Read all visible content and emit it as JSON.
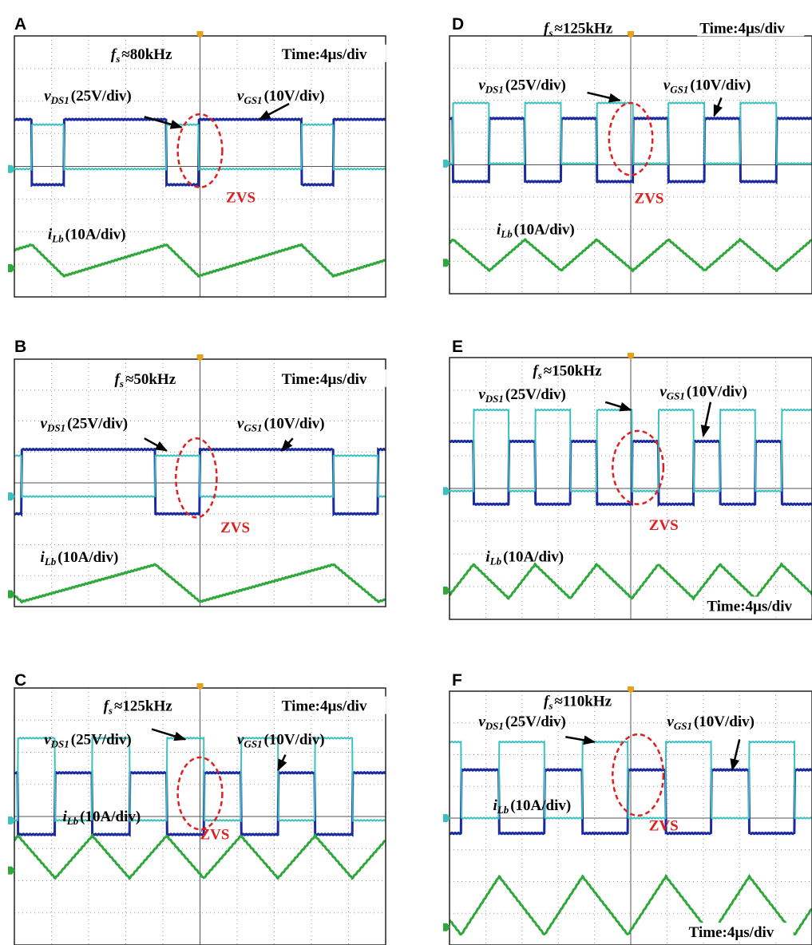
{
  "panels": [
    {
      "label": "A",
      "frequency": {
        "symbol": "f",
        "subscript": "s",
        "text": "≈80kHz"
      },
      "time": "Time:4µs/div",
      "vds": {
        "symbol": "v",
        "subscript": "DS1",
        "text": "(25V/div)"
      },
      "vgs": {
        "symbol": "v",
        "subscript": "GS1",
        "text": "(10V/div)"
      },
      "ilb": {
        "symbol": "i",
        "subscript": "Lb",
        "text": "(10A/div)"
      },
      "zvs": "ZVS"
    },
    {
      "label": "B",
      "frequency": {
        "symbol": "f",
        "subscript": "s",
        "text": "≈50kHz"
      },
      "time": "Time:4µs/div",
      "vds": {
        "symbol": "v",
        "subscript": "DS1",
        "text": "(25V/div)"
      },
      "vgs": {
        "symbol": "v",
        "subscript": "GS1",
        "text": "(10V/div)"
      },
      "ilb": {
        "symbol": "i",
        "subscript": "Lb",
        "text": "(10A/div)"
      },
      "zvs": "ZVS"
    },
    {
      "label": "C",
      "frequency": {
        "symbol": "f",
        "subscript": "s",
        "text": "≈125kHz"
      },
      "time": "Time:4µs/div",
      "vds": {
        "symbol": "v",
        "subscript": "DS1",
        "text": "(25V/div)"
      },
      "vgs": {
        "symbol": "v",
        "subscript": "GS1",
        "text": "(10V/div)"
      },
      "ilb": {
        "symbol": "i",
        "subscript": "Lb",
        "text": "(10A/div)"
      },
      "zvs": "ZVS"
    },
    {
      "label": "D",
      "frequency": {
        "symbol": "f",
        "subscript": "s",
        "text": "≈125kHz"
      },
      "time": "Time:4µs/div",
      "vds": {
        "symbol": "v",
        "subscript": "DS1",
        "text": "(25V/div)"
      },
      "vgs": {
        "symbol": "v",
        "subscript": "GS1",
        "text": "(10V/div)"
      },
      "ilb": {
        "symbol": "i",
        "subscript": "Lb",
        "text": "(10A/div)"
      },
      "zvs": "ZVS"
    },
    {
      "label": "E",
      "frequency": {
        "symbol": "f",
        "subscript": "s",
        "text": "≈150kHz"
      },
      "time": "Time:4µs/div",
      "vds": {
        "symbol": "v",
        "subscript": "DS1",
        "text": "(25V/div)"
      },
      "vgs": {
        "symbol": "v",
        "subscript": "GS1",
        "text": "(10V/div)"
      },
      "ilb": {
        "symbol": "i",
        "subscript": "Lb",
        "text": "(10A/div)"
      },
      "zvs": "ZVS"
    },
    {
      "label": "F",
      "frequency": {
        "symbol": "f",
        "subscript": "s",
        "text": "≈110kHz"
      },
      "time": "Time:4µs/div",
      "vds": {
        "symbol": "v",
        "subscript": "DS1",
        "text": "(25V/div)"
      },
      "vgs": {
        "symbol": "v",
        "subscript": "GS1",
        "text": "(10V/div)"
      },
      "ilb": {
        "symbol": "i",
        "subscript": "Lb",
        "text": "(10A/div)"
      },
      "zvs": "ZVS"
    }
  ]
}
